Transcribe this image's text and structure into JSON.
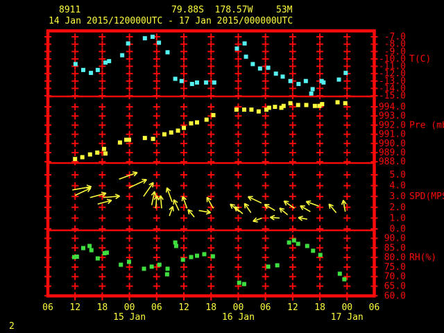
{
  "header": {
    "station_id": "8911",
    "location": "79.88S  178.57W",
    "elevation": "53M",
    "time_range": "14 Jan 2015/120000UTC - 17 Jan 2015/000000UTC"
  },
  "footer": {
    "page_number": "2"
  },
  "colors": {
    "background": "#000000",
    "axis_red": "#fb0a0a",
    "yellow": "#fcfc3c",
    "cyan": "#55f2f2",
    "green": "#3fdf3f"
  },
  "x_axis": {
    "start_label_hours_utc": "06",
    "hour_ticks": [
      {
        "hour": 0,
        "label": "06"
      },
      {
        "hour": 6,
        "label": "12"
      },
      {
        "hour": 12,
        "label": "18"
      },
      {
        "hour": 18,
        "label": "00"
      },
      {
        "hour": 24,
        "label": "06"
      },
      {
        "hour": 30,
        "label": "12"
      },
      {
        "hour": 36,
        "label": "18"
      },
      {
        "hour": 42,
        "label": "00"
      },
      {
        "hour": 48,
        "label": "06"
      },
      {
        "hour": 54,
        "label": "12"
      },
      {
        "hour": 60,
        "label": "18"
      },
      {
        "hour": 66,
        "label": "00"
      },
      {
        "hour": 72,
        "label": "06"
      }
    ],
    "date_labels": [
      {
        "hour": 18,
        "label": "15 Jan"
      },
      {
        "hour": 42,
        "label": "16 Jan"
      },
      {
        "hour": 66,
        "label": "17 Jan"
      }
    ],
    "hours_span": 72
  },
  "chart_data": [
    {
      "type": "scatter",
      "name": "temperature",
      "ylabel": "T(C)",
      "color_key": "cyan",
      "ylim": [
        -15.09,
        -6.15
      ],
      "unit_label_at": -10,
      "yticks": [
        {
          "v": -7,
          "label": "-7.0"
        },
        {
          "v": -8,
          "label": "-8.0"
        },
        {
          "v": -9,
          "label": "-9.0"
        },
        {
          "v": -10,
          "label": "-10.0"
        },
        {
          "v": -11,
          "label": "-11.0"
        },
        {
          "v": -12,
          "label": "-12.0"
        },
        {
          "v": -13,
          "label": "-13.0"
        },
        {
          "v": -14,
          "label": "-14.0"
        },
        {
          "v": -15,
          "label": "-15.0"
        }
      ],
      "points_hour_value": [
        [
          6.1,
          -10.7
        ],
        [
          7.8,
          -11.5
        ],
        [
          9.5,
          -11.9
        ],
        [
          11.0,
          -11.5
        ],
        [
          12.7,
          -10.5
        ],
        [
          13.5,
          -10.3
        ],
        [
          16.4,
          -9.5
        ],
        [
          17.7,
          -7.9
        ],
        [
          21.4,
          -7.2
        ],
        [
          23.1,
          -7.0
        ],
        [
          24.5,
          -7.8
        ],
        [
          26.4,
          -9.1
        ],
        [
          28.1,
          -12.7
        ],
        [
          29.5,
          -13.0
        ],
        [
          31.8,
          -13.4
        ],
        [
          32.9,
          -13.2
        ],
        [
          34.9,
          -13.2
        ],
        [
          36.7,
          -13.2
        ],
        [
          41.7,
          -8.6
        ],
        [
          43.4,
          -7.9
        ],
        [
          43.7,
          -9.7
        ],
        [
          45.2,
          -10.7
        ],
        [
          46.8,
          -11.3
        ],
        [
          48.6,
          -11.2
        ],
        [
          50.3,
          -12.0
        ],
        [
          51.8,
          -12.4
        ],
        [
          53.5,
          -13.0
        ],
        [
          55.3,
          -13.4
        ],
        [
          56.9,
          -13.0
        ],
        [
          58.1,
          -14.7
        ],
        [
          58.4,
          -14.1
        ],
        [
          60.4,
          -13.0
        ],
        [
          60.8,
          -13.2
        ],
        [
          64.2,
          -12.8
        ],
        [
          65.7,
          -11.9
        ]
      ]
    },
    {
      "type": "scatter",
      "name": "pressure",
      "ylabel": "Pre (mb)",
      "color_key": "yellow",
      "ylim": [
        987.86,
        995.14
      ],
      "unit_label_at": 992,
      "yticks": [
        {
          "v": 994,
          "label": "994.0"
        },
        {
          "v": 993,
          "label": "993.0"
        },
        {
          "v": 992,
          "label": "992.0"
        },
        {
          "v": 991,
          "label": "991.0"
        },
        {
          "v": 990,
          "label": "990.0"
        },
        {
          "v": 989,
          "label": "989.0"
        },
        {
          "v": 988,
          "label": "988.0"
        }
      ],
      "points_hour_value": [
        [
          6.0,
          988.3
        ],
        [
          7.6,
          988.5
        ],
        [
          9.3,
          988.8
        ],
        [
          10.9,
          989.0
        ],
        [
          12.4,
          989.4
        ],
        [
          12.7,
          988.9
        ],
        [
          15.9,
          990.1
        ],
        [
          17.3,
          990.4
        ],
        [
          17.9,
          990.4
        ],
        [
          21.4,
          990.6
        ],
        [
          23.2,
          990.5
        ],
        [
          25.7,
          991.0
        ],
        [
          27.2,
          991.2
        ],
        [
          28.7,
          991.4
        ],
        [
          30.0,
          991.7
        ],
        [
          31.6,
          992.2
        ],
        [
          32.9,
          992.3
        ],
        [
          35.0,
          992.6
        ],
        [
          36.5,
          993.1
        ],
        [
          41.6,
          993.7
        ],
        [
          43.3,
          993.7
        ],
        [
          44.9,
          993.7
        ],
        [
          46.5,
          993.5
        ],
        [
          48.2,
          993.7
        ],
        [
          48.8,
          993.9
        ],
        [
          50.1,
          994.0
        ],
        [
          51.5,
          993.9
        ],
        [
          52.0,
          994.1
        ],
        [
          53.5,
          994.4
        ],
        [
          55.2,
          994.2
        ],
        [
          57.0,
          994.2
        ],
        [
          58.9,
          994.1
        ],
        [
          59.9,
          994.1
        ],
        [
          60.5,
          994.3
        ],
        [
          63.9,
          994.5
        ],
        [
          65.6,
          994.4
        ]
      ]
    },
    {
      "type": "wind_vectors",
      "name": "wind",
      "ylabel": "SPD(MPS)",
      "color_key": "yellow",
      "ylim": [
        -0.13,
        6.09
      ],
      "unit_label_at": 3,
      "angle_convention": "degrees CCW from east (up = 90)",
      "yticks": [
        {
          "v": 5,
          "label": "5.0"
        },
        {
          "v": 4,
          "label": "4.0"
        },
        {
          "v": 3,
          "label": "3.0"
        },
        {
          "v": 2,
          "label": "2.0"
        },
        {
          "v": 1,
          "label": "1.0"
        },
        {
          "v": 0,
          "label": "0.0"
        }
      ],
      "arrows_hour_speed_angle": [
        [
          5.4,
          3.6,
          10
        ],
        [
          6.0,
          3.1,
          25
        ],
        [
          9.3,
          2.9,
          15
        ],
        [
          11.0,
          2.3,
          15
        ],
        [
          12.2,
          2.9,
          5
        ],
        [
          15.7,
          4.6,
          20
        ],
        [
          17.9,
          3.8,
          25
        ],
        [
          21.1,
          3.0,
          55
        ],
        [
          22.9,
          2.2,
          78
        ],
        [
          23.8,
          1.9,
          85
        ],
        [
          25.1,
          1.9,
          95
        ],
        [
          26.8,
          1.2,
          70
        ],
        [
          27.4,
          2.5,
          110
        ],
        [
          28.9,
          1.7,
          115
        ],
        [
          30.7,
          1.9,
          110
        ],
        [
          32.3,
          1.1,
          130
        ],
        [
          33.3,
          1.7,
          -10
        ],
        [
          36.5,
          1.9,
          120
        ],
        [
          42.2,
          1.6,
          140
        ],
        [
          43.0,
          1.4,
          140
        ],
        [
          44.8,
          1.5,
          125
        ],
        [
          47.1,
          2.4,
          155
        ],
        [
          47.2,
          1.0,
          200
        ],
        [
          50.1,
          1.7,
          150
        ],
        [
          51.1,
          1.0,
          175
        ],
        [
          52.9,
          1.3,
          140
        ],
        [
          54.4,
          1.9,
          145
        ],
        [
          57.2,
          0.9,
          170
        ],
        [
          57.9,
          1.6,
          150
        ],
        [
          59.8,
          2.1,
          160
        ],
        [
          63.6,
          1.5,
          130
        ],
        [
          65.6,
          1.6,
          100
        ]
      ]
    },
    {
      "type": "scatter",
      "name": "relative_humidity",
      "ylabel": "RH(%)",
      "color_key": "green",
      "ylim": [
        59.75,
        94.17
      ],
      "unit_label_at": 80,
      "yticks": [
        {
          "v": 90,
          "label": "90.0"
        },
        {
          "v": 85,
          "label": "85.0"
        },
        {
          "v": 80,
          "label": "80.0"
        },
        {
          "v": 75,
          "label": "75.0"
        },
        {
          "v": 70,
          "label": "70.0"
        },
        {
          "v": 65,
          "label": "65.0"
        },
        {
          "v": 60,
          "label": "60.0"
        }
      ],
      "points_hour_value": [
        [
          5.8,
          80.2
        ],
        [
          6.4,
          80.4
        ],
        [
          7.8,
          84.9
        ],
        [
          9.2,
          86.0
        ],
        [
          9.6,
          83.8
        ],
        [
          11.0,
          79.5
        ],
        [
          12.5,
          82.2
        ],
        [
          13.0,
          82.5
        ],
        [
          16.1,
          76.2
        ],
        [
          17.9,
          77.7
        ],
        [
          21.2,
          74.1
        ],
        [
          22.9,
          75.2
        ],
        [
          24.6,
          76.2
        ],
        [
          26.3,
          71.2
        ],
        [
          26.4,
          74.1
        ],
        [
          28.1,
          87.8
        ],
        [
          28.3,
          86.0
        ],
        [
          29.8,
          78.8
        ],
        [
          31.6,
          80.2
        ],
        [
          32.9,
          80.9
        ],
        [
          34.5,
          81.7
        ],
        [
          36.4,
          80.6
        ],
        [
          42.2,
          66.8
        ],
        [
          43.3,
          66.1
        ],
        [
          48.6,
          75.2
        ],
        [
          50.6,
          75.9
        ],
        [
          53.2,
          87.8
        ],
        [
          54.3,
          88.9
        ],
        [
          55.2,
          87.1
        ],
        [
          57.2,
          86.0
        ],
        [
          58.5,
          83.5
        ],
        [
          60.1,
          81.3
        ],
        [
          64.4,
          71.5
        ],
        [
          65.4,
          68.6
        ]
      ]
    }
  ]
}
